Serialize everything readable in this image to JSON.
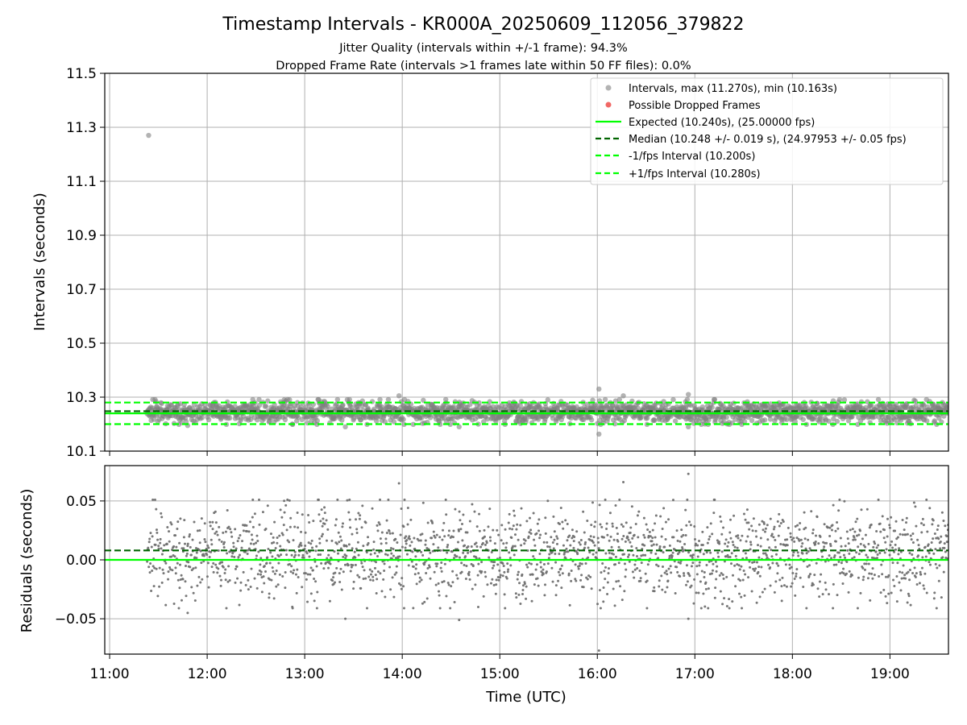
{
  "chart_data": [
    {
      "type": "scatter",
      "title": "Timestamp Intervals - KR000A_20250609_112056_379822",
      "subtitle_lines": [
        "Jitter Quality (intervals within +/-1 frame): 94.3%",
        "Dropped Frame Rate (intervals >1 frames late within 50 FF files): 0.0%"
      ],
      "xlabel": "",
      "ylabel": "Intervals (seconds)",
      "xlim_hours": [
        10.95,
        19.6
      ],
      "ylim": [
        10.1,
        11.5
      ],
      "y_ticks": [
        "10.1",
        "10.3",
        "10.5",
        "10.7",
        "10.9",
        "11.1",
        "11.3",
        "11.5"
      ],
      "grid": true,
      "legend_position": "top-right",
      "series": [
        {
          "name": "Intervals, max (11.270s), min (10.163s)",
          "kind": "scatter",
          "color": "#808080",
          "x_start": "11:23",
          "x_end": "19:36",
          "center": 10.245,
          "spread": 0.02,
          "outliers": [
            {
              "x": "11:24",
              "y": 11.27
            },
            {
              "x": "16:01",
              "y": 10.163
            },
            {
              "x": "16:01",
              "y": 10.33
            },
            {
              "x": "16:56",
              "y": 10.31
            },
            {
              "x": "16:56",
              "y": 10.19
            },
            {
              "x": "13:25",
              "y": 10.19
            },
            {
              "x": "14:35",
              "y": 10.19
            },
            {
              "x": "13:58",
              "y": 10.305
            },
            {
              "x": "16:16",
              "y": 10.305
            },
            {
              "x": "11:48",
              "y": 10.195
            }
          ]
        },
        {
          "name": "Possible Dropped Frames",
          "kind": "scatter",
          "color": "#f0605d",
          "points": []
        },
        {
          "name": "Expected (10.240s), (25.00000 fps)",
          "kind": "hline",
          "y": 10.24,
          "color": "#00ff00",
          "style": "solid"
        },
        {
          "name": "Median (10.248 +/- 0.019 s), (24.97953 +/- 0.05 fps)",
          "kind": "hline",
          "y": 10.248,
          "color": "#006400",
          "style": "dashed"
        },
        {
          "name": "-1/fps Interval (10.200s)",
          "kind": "hline",
          "y": 10.2,
          "color": "#00ff00",
          "style": "dashed"
        },
        {
          "name": "+1/fps Interval (10.280s)",
          "kind": "hline",
          "y": 10.28,
          "color": "#00ff00",
          "style": "dashed"
        }
      ]
    },
    {
      "type": "scatter",
      "title": "",
      "xlabel": "Time (UTC)",
      "ylabel": "Residuals (seconds)",
      "xlim_hours": [
        10.95,
        19.6
      ],
      "ylim": [
        -0.08,
        0.08
      ],
      "x_ticks": [
        "11:00",
        "12:00",
        "13:00",
        "14:00",
        "15:00",
        "16:00",
        "17:00",
        "18:00",
        "19:00"
      ],
      "y_ticks": [
        "−0.05",
        "0.00",
        "0.05"
      ],
      "grid": true,
      "series": [
        {
          "name": "Residuals",
          "kind": "scatter",
          "color": "#707070",
          "x_start": "11:23",
          "x_end": "19:36",
          "center": 0.005,
          "spread": 0.02,
          "outliers": [
            {
              "x": "16:01",
              "y": -0.077
            },
            {
              "x": "16:56",
              "y": 0.073
            },
            {
              "x": "16:56",
              "y": -0.05
            },
            {
              "x": "16:16",
              "y": 0.066
            },
            {
              "x": "13:58",
              "y": 0.065
            },
            {
              "x": "14:35",
              "y": -0.051
            },
            {
              "x": "13:25",
              "y": -0.05
            },
            {
              "x": "11:48",
              "y": -0.045
            }
          ]
        },
        {
          "name": "Expected",
          "kind": "hline",
          "y": 0.0,
          "color": "#00ff00",
          "style": "solid"
        },
        {
          "name": "Median",
          "kind": "hline",
          "y": 0.008,
          "color": "#006400",
          "style": "dashed"
        }
      ]
    }
  ]
}
